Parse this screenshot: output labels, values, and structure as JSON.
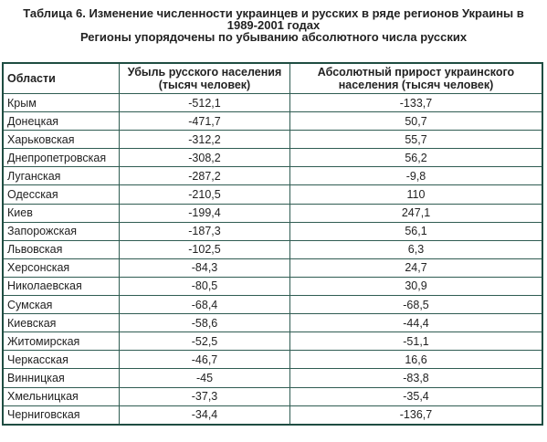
{
  "caption": {
    "line1": "Таблица 6. Изменение численности украинцев и русских в ряде регионов Украины в",
    "line2": "1989-2001 годах",
    "line3": "Регионы упорядочены по убыванию абсолютного числа русских"
  },
  "table": {
    "headers": {
      "region": "Области",
      "loss_line1": "Убыль русского населения",
      "loss_line2": "(тысяч человек)",
      "gain_line1": "Абсолютный прирост украинского",
      "gain_line2": "населения (тысяч человек)"
    },
    "rows": [
      {
        "region": "Крым",
        "loss": "-512,1",
        "gain": "-133,7"
      },
      {
        "region": "Донецкая",
        "loss": "-471,7",
        "gain": "50,7"
      },
      {
        "region": "Харьковская",
        "loss": "-312,2",
        "gain": "55,7"
      },
      {
        "region": "Днепропетровская",
        "loss": "-308,2",
        "gain": "56,2"
      },
      {
        "region": "Луганская",
        "loss": "-287,2",
        "gain": "-9,8"
      },
      {
        "region": "Одесская",
        "loss": "-210,5",
        "gain": "110"
      },
      {
        "region": "Киев",
        "loss": "-199,4",
        "gain": "247,1"
      },
      {
        "region": "Запорожская",
        "loss": "-187,3",
        "gain": "56,1"
      },
      {
        "region": "Львовская",
        "loss": "-102,5",
        "gain": "6,3"
      },
      {
        "region": "Херсонская",
        "loss": "-84,3",
        "gain": "24,7"
      },
      {
        "region": "Николаевская",
        "loss": "-80,5",
        "gain": "30,9"
      },
      {
        "region": "Сумская",
        "loss": "-68,4",
        "gain": "-68,5"
      },
      {
        "region": "Киевская",
        "loss": "-58,6",
        "gain": "-44,4"
      },
      {
        "region": "Житомирская",
        "loss": "-52,5",
        "gain": "-51,1"
      },
      {
        "region": "Черкасская",
        "loss": "-46,7",
        "gain": "16,6"
      },
      {
        "region": "Винницкая",
        "loss": "-45",
        "gain": "-83,8"
      },
      {
        "region": "Хмельницкая",
        "loss": "-37,3",
        "gain": "-35,4"
      },
      {
        "region": "Черниговская",
        "loss": "-34,4",
        "gain": "-136,7"
      }
    ]
  }
}
